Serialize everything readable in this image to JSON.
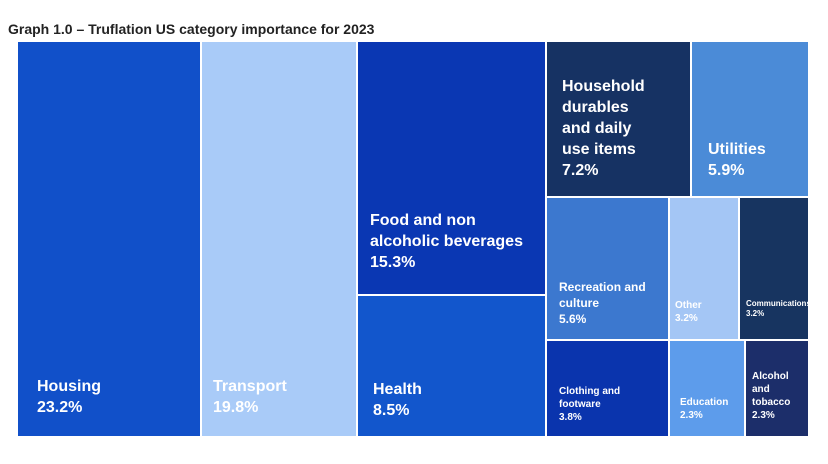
{
  "title": "Graph 1.0 – Truflation US category importance for 2023",
  "chart_data": {
    "type": "treemap",
    "title": "Graph 1.0 – Truflation US category importance for 2023",
    "unit": "%",
    "items": [
      {
        "name": "Housing",
        "value": 23.2,
        "label": "23.2%",
        "color": "#1150c9",
        "text_color": "#ffffff"
      },
      {
        "name": "Transport",
        "value": 19.8,
        "label": "19.8%",
        "color": "#a9cbf8",
        "text_color": "#ffffff"
      },
      {
        "name": "Food and non alcoholic beverages",
        "value": 15.3,
        "label": "15.3%",
        "color": "#0a37b3",
        "text_color": "#ffffff"
      },
      {
        "name": "Health",
        "value": 8.5,
        "label": "8.5%",
        "color": "#1256cc",
        "text_color": "#ffffff"
      },
      {
        "name": "Household durables and daily use items",
        "value": 7.2,
        "label": "7.2%",
        "color": "#163263",
        "text_color": "#ffffff"
      },
      {
        "name": "Utilities",
        "value": 5.9,
        "label": "5.9%",
        "color": "#4b8bd7",
        "text_color": "#ffffff"
      },
      {
        "name": "Recreation and culture",
        "value": 5.6,
        "label": "5.6%",
        "color": "#3c78cf",
        "text_color": "#ffffff"
      },
      {
        "name": "Other",
        "value": 3.2,
        "label": "3.2%",
        "color": "#a4c6f5",
        "text_color": "#ffffff"
      },
      {
        "name": "Communications",
        "value": 3.2,
        "label": "3.2%",
        "color": "#173460",
        "text_color": "#ffffff"
      },
      {
        "name": "Clothing and footware",
        "value": 3.8,
        "label": "3.8%",
        "color": "#0a34ad",
        "text_color": "#ffffff"
      },
      {
        "name": "Education",
        "value": 2.3,
        "label": "2.3%",
        "color": "#5d9ceb",
        "text_color": "#ffffff"
      },
      {
        "name": "Alcohol and tobacco",
        "value": 2.3,
        "label": "2.3%",
        "color": "#1c2e6a",
        "text_color": "#ffffff"
      }
    ]
  }
}
